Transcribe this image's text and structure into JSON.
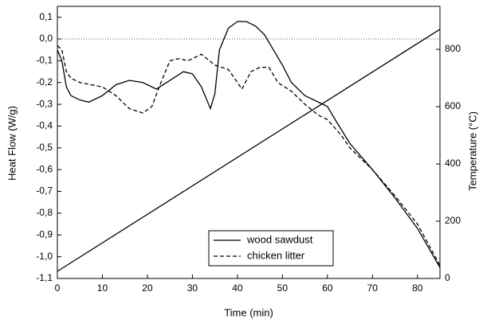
{
  "chart_data": {
    "type": "line",
    "xlabel": "Time (min)",
    "ylabel": "Heat Flow (W/g)",
    "y2label": "Temperature (°C)",
    "xlim": [
      0,
      85
    ],
    "xticks": [
      0,
      10,
      20,
      30,
      40,
      50,
      60,
      70,
      80
    ],
    "ylim": [
      -1.1,
      0.15
    ],
    "yticks": [
      {
        "value": 0.1,
        "label": "0,1"
      },
      {
        "value": 0,
        "label": "0,0"
      },
      {
        "value": -0.1,
        "label": "-0,1"
      },
      {
        "value": -0.2,
        "label": "-0,2"
      },
      {
        "value": -0.3,
        "label": "-0,3"
      },
      {
        "value": -0.4,
        "label": "-0,4"
      },
      {
        "value": -0.5,
        "label": "-0,5"
      },
      {
        "value": -0.6,
        "label": "-0,6"
      },
      {
        "value": -0.7,
        "label": "-0,7"
      },
      {
        "value": -0.8,
        "label": "-0,8"
      },
      {
        "value": -0.9,
        "label": "-0,9"
      },
      {
        "value": -1.0,
        "label": "-1,0"
      },
      {
        "value": -1.1,
        "label": "-1,1"
      }
    ],
    "y2lim": [
      0,
      950
    ],
    "y2ticks": [
      0,
      200,
      400,
      600,
      800
    ],
    "reference_line": {
      "y": 0,
      "style": "dotted"
    },
    "legend": "lower center",
    "series": [
      {
        "name": "wood sawdust",
        "color": "#000000",
        "style": "solid",
        "x": [
          0,
          1,
          2,
          3,
          5,
          7,
          10,
          13,
          16,
          19,
          22,
          25,
          28,
          30,
          32,
          34,
          35,
          36,
          38,
          40,
          42,
          44,
          46,
          48,
          50,
          52,
          55,
          58,
          60,
          62,
          65,
          70,
          75,
          80,
          85
        ],
        "values": [
          -0.05,
          -0.1,
          -0.22,
          -0.26,
          -0.28,
          -0.29,
          -0.26,
          -0.21,
          -0.19,
          -0.2,
          -0.23,
          -0.19,
          -0.15,
          -0.16,
          -0.22,
          -0.32,
          -0.25,
          -0.05,
          0.05,
          0.08,
          0.08,
          0.06,
          0.02,
          -0.05,
          -0.12,
          -0.2,
          -0.26,
          -0.29,
          -0.31,
          -0.38,
          -0.48,
          -0.6,
          -0.73,
          -0.87,
          -1.05
        ]
      },
      {
        "name": "chicken litter",
        "color": "#000000",
        "style": "dashed",
        "x": [
          0,
          1,
          2,
          3,
          5,
          10,
          13,
          16,
          19,
          21,
          23,
          25,
          27,
          29,
          32,
          35,
          38,
          40,
          41,
          43,
          45,
          47,
          49,
          52,
          55,
          58,
          60,
          63,
          65,
          70,
          75,
          80,
          85
        ],
        "values": [
          -0.03,
          -0.05,
          -0.15,
          -0.18,
          -0.2,
          -0.22,
          -0.26,
          -0.32,
          -0.34,
          -0.31,
          -0.2,
          -0.1,
          -0.09,
          -0.1,
          -0.07,
          -0.12,
          -0.14,
          -0.2,
          -0.23,
          -0.15,
          -0.13,
          -0.13,
          -0.2,
          -0.24,
          -0.3,
          -0.35,
          -0.37,
          -0.44,
          -0.5,
          -0.6,
          -0.72,
          -0.85,
          -1.04
        ]
      },
      {
        "color": "#000000",
        "style": "solid",
        "axis": "y2",
        "x": [
          0,
          85
        ],
        "values": [
          25,
          870
        ]
      }
    ]
  }
}
